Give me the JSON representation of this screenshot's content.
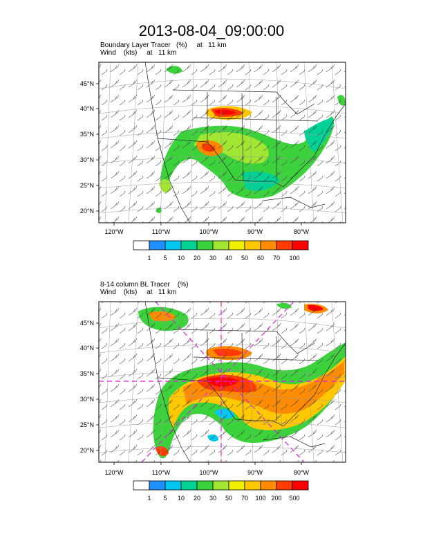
{
  "title": "2013-08-04_09:00:00",
  "panels": [
    {
      "title_line1": "Boundary Layer Tracer   (%)     at   11 km",
      "title_line2": "Wind    (kts)     at   11 km",
      "lat_labels": [
        "45°N",
        "40°N",
        "35°N",
        "30°N",
        "25°N",
        "20°N"
      ],
      "lon_labels": [
        "120°W",
        "110°W",
        "100°W",
        "90°W",
        "80°W"
      ],
      "colorbar_labels": [
        "1",
        "5",
        "10",
        "20",
        "30",
        "40",
        "50",
        "60",
        "70",
        "100"
      ]
    },
    {
      "title_line1": "8-14 column BL Tracer    (%)",
      "title_line2": "Wind    (kts)     at   11 km",
      "lat_labels": [
        "45°N",
        "40°N",
        "35°N",
        "30°N",
        "25°N",
        "20°N"
      ],
      "lon_labels": [
        "120°W",
        "110°W",
        "100°W",
        "90°W",
        "80°W"
      ],
      "colorbar_labels": [
        "1",
        "5",
        "10",
        "20",
        "30",
        "50",
        "70",
        "100",
        "200",
        "500"
      ]
    }
  ],
  "colorbar_colors": [
    "#ffffff",
    "#1e90ff",
    "#00c8f0",
    "#00d296",
    "#3cd23c",
    "#a0e632",
    "#f0f000",
    "#ffc800",
    "#ff8c00",
    "#ff3c00",
    "#ff0000"
  ]
}
